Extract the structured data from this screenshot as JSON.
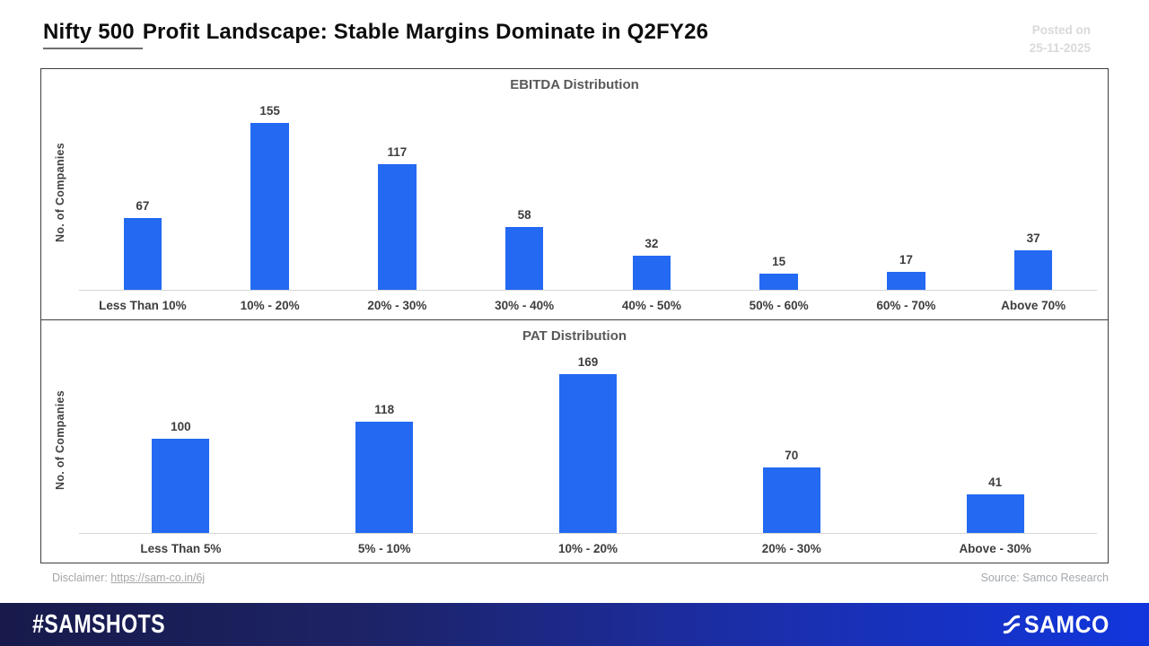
{
  "header": {
    "title_highlight": "Nifty 500",
    "title_rest": "Profit Landscape: Stable Margins Dominate in Q2FY26",
    "posted_label": "Posted on",
    "posted_date": "25-11-2025"
  },
  "chart_data": [
    {
      "type": "bar",
      "title": "EBITDA Distribution",
      "xlabel": "",
      "ylabel": "No. of Companies",
      "categories": [
        "Less Than 10%",
        "10% - 20%",
        "20% - 30%",
        "30% - 40%",
        "40% - 50%",
        "50% - 60%",
        "60% - 70%",
        "Above 70%"
      ],
      "values": [
        67,
        155,
        117,
        58,
        32,
        15,
        17,
        37
      ],
      "bar_color": "#2369F2",
      "value_labels": true,
      "grid": false,
      "legend": false,
      "ylim": [
        0,
        170
      ]
    },
    {
      "type": "bar",
      "title": "PAT Distribution",
      "xlabel": "",
      "ylabel": "No. of Companies",
      "categories": [
        "Less Than 5%",
        "5% - 10%",
        "10% - 20%",
        "20% - 30%",
        "Above - 30%"
      ],
      "values": [
        100,
        118,
        169,
        70,
        41
      ],
      "bar_color": "#2369F2",
      "value_labels": true,
      "grid": false,
      "legend": false,
      "ylim": [
        0,
        185
      ]
    }
  ],
  "footer": {
    "disclaimer_label": "Disclaimer:",
    "disclaimer_link": "https://sam-co.in/6j",
    "source": "Source: Samco Research",
    "hashtag": "#SAMSHOTS",
    "brand": "SAMCO"
  },
  "colors": {
    "bar_blue": "#2369F2",
    "footer_gradient_start": "#171a4a",
    "footer_gradient_end": "#1136dd",
    "panel_border": "#3f3f3f",
    "muted_text": "#a6a6a6",
    "posted_text": "#d9d9d9"
  }
}
